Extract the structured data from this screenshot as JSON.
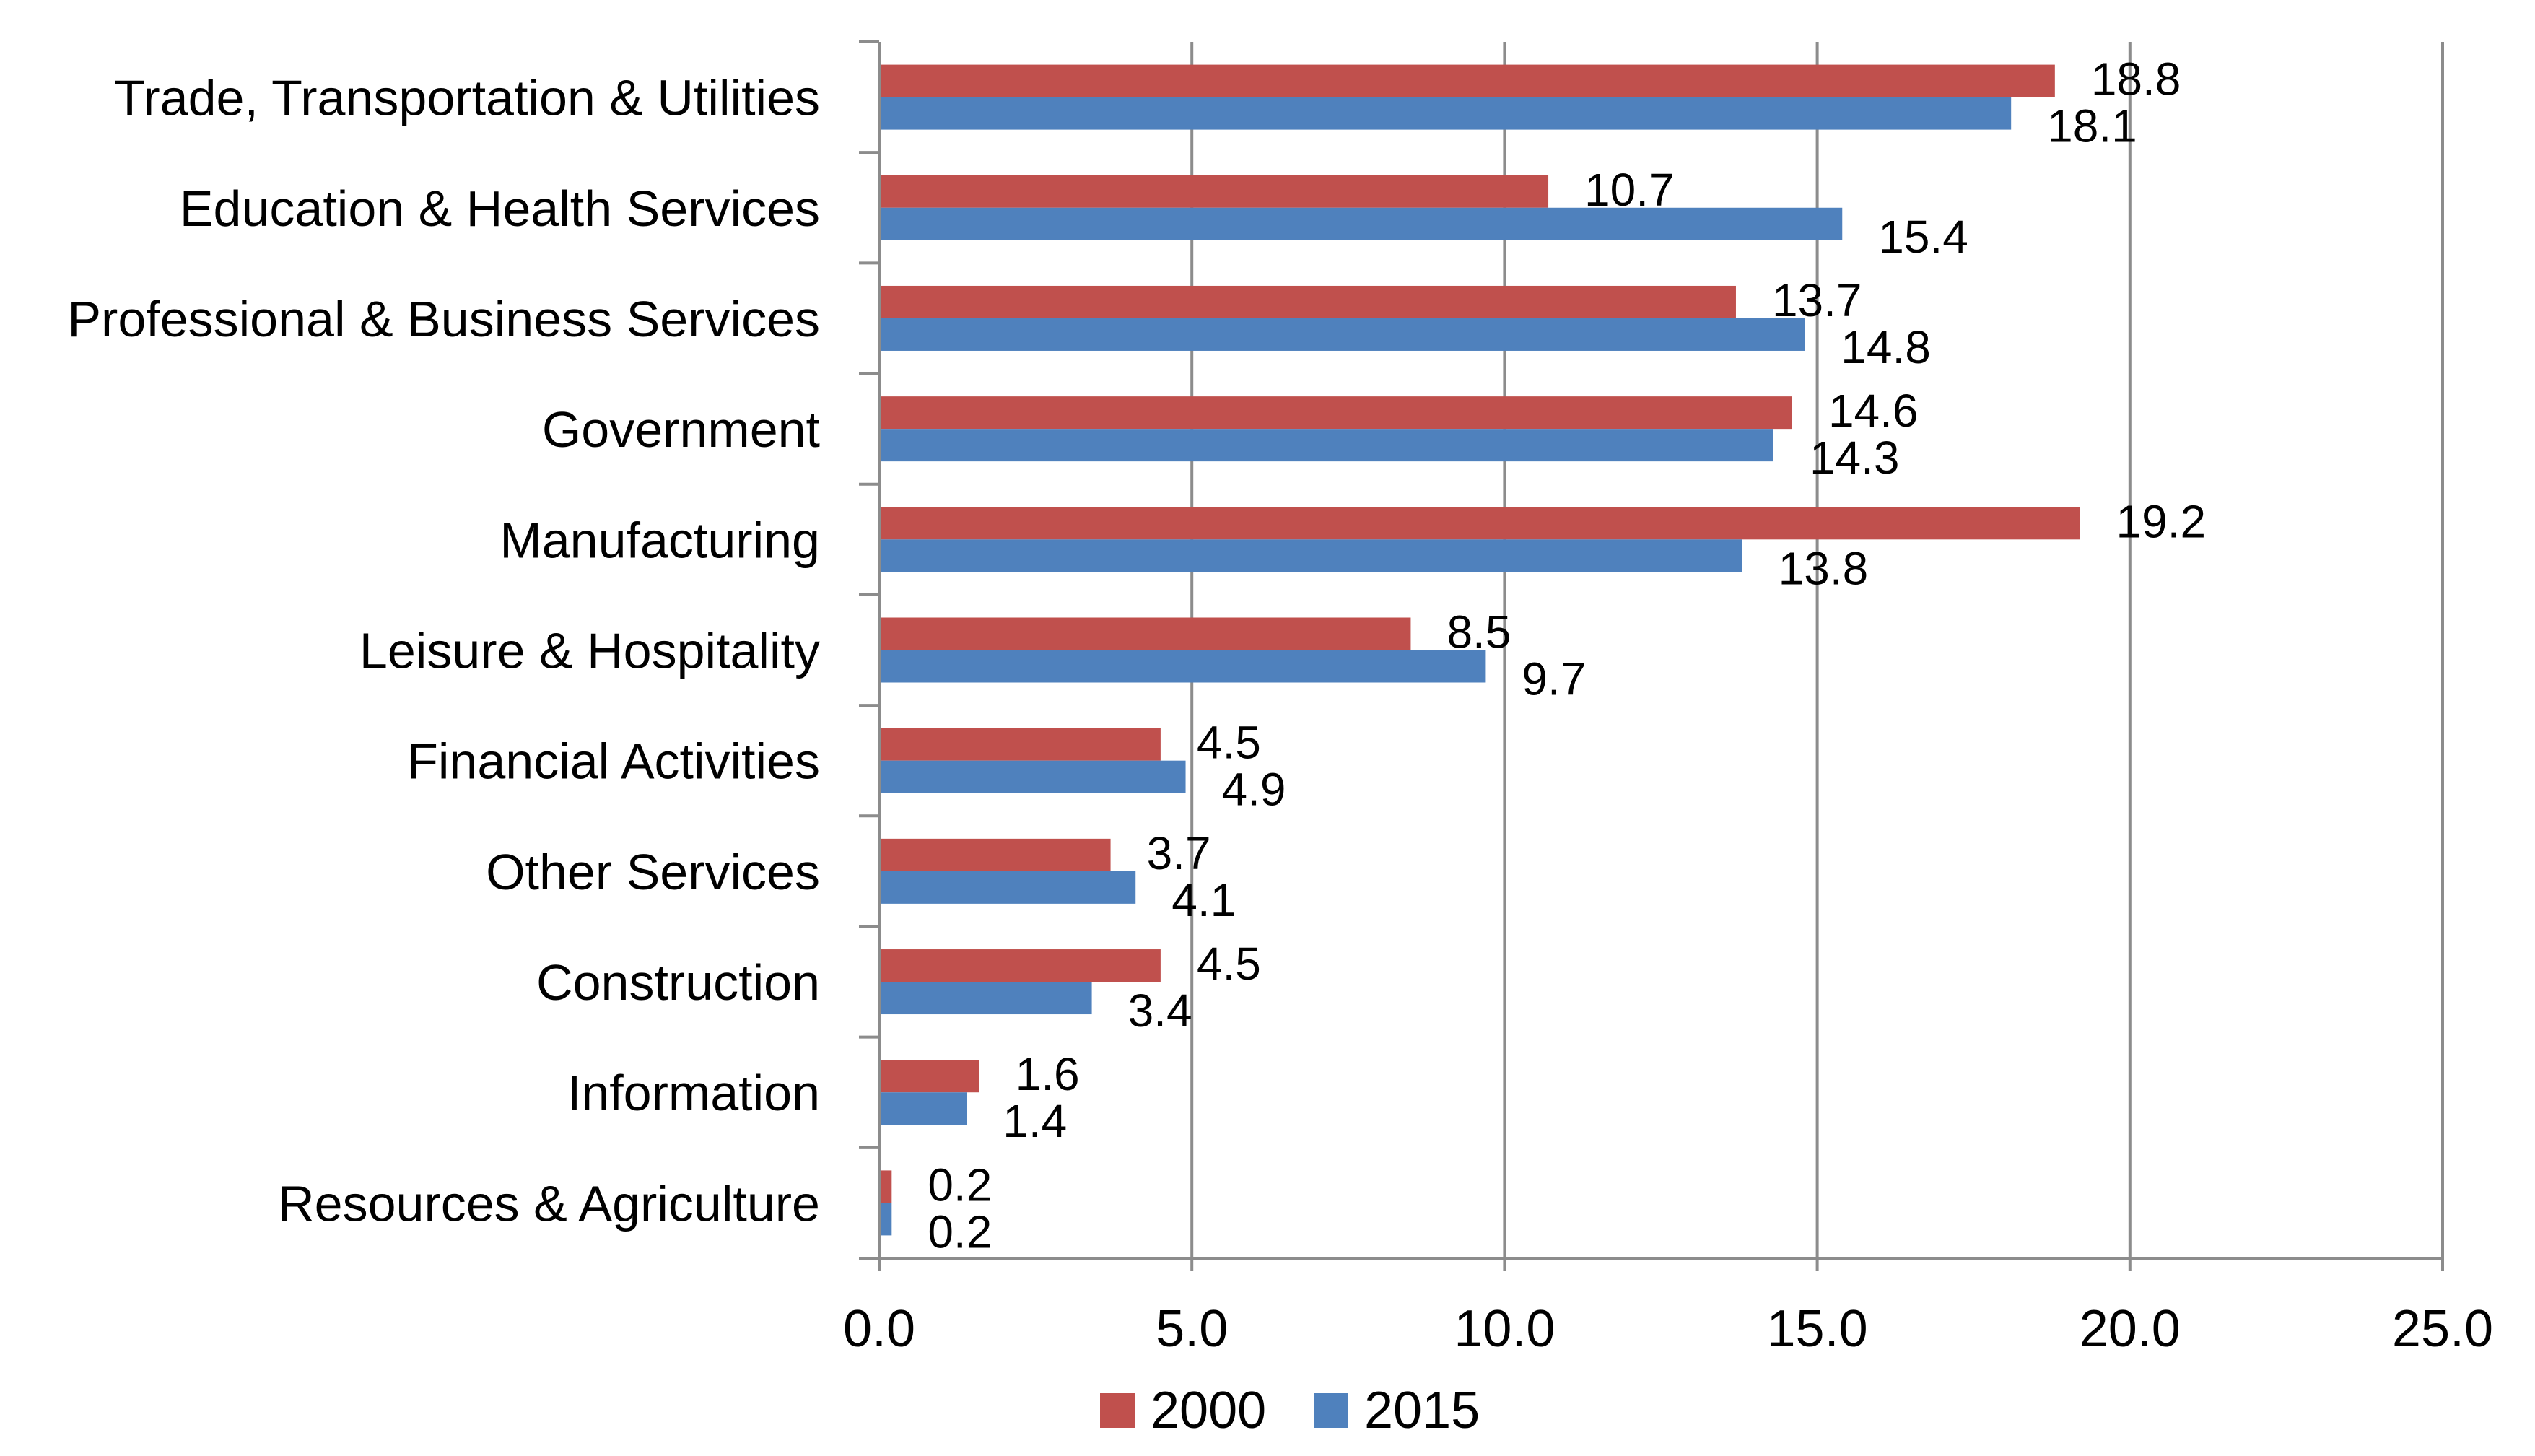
{
  "chart_data": {
    "type": "bar",
    "orientation": "horizontal",
    "categories": [
      "Trade, Transportation & Utilities",
      "Education & Health Services",
      "Professional & Business Services",
      "Government",
      "Manufacturing",
      "Leisure & Hospitality",
      "Financial Activities",
      "Other Services",
      "Construction",
      "Information",
      "Resources & Agriculture"
    ],
    "series": [
      {
        "name": "2000",
        "color": "#c0504d",
        "values": [
          18.8,
          10.7,
          13.7,
          14.6,
          19.2,
          8.5,
          4.5,
          3.7,
          4.5,
          1.6,
          0.2
        ]
      },
      {
        "name": "2015",
        "color": "#4f81bd",
        "values": [
          18.1,
          15.4,
          14.8,
          14.3,
          13.8,
          9.7,
          4.9,
          4.1,
          3.4,
          1.4,
          0.2
        ]
      }
    ],
    "xlim": [
      0,
      25
    ],
    "xticks": [
      "0.0",
      "5.0",
      "10.0",
      "15.0",
      "20.0",
      "25.0"
    ],
    "grid": "vertical",
    "legend_position": "bottom",
    "title": "",
    "xlabel": "",
    "ylabel": ""
  }
}
